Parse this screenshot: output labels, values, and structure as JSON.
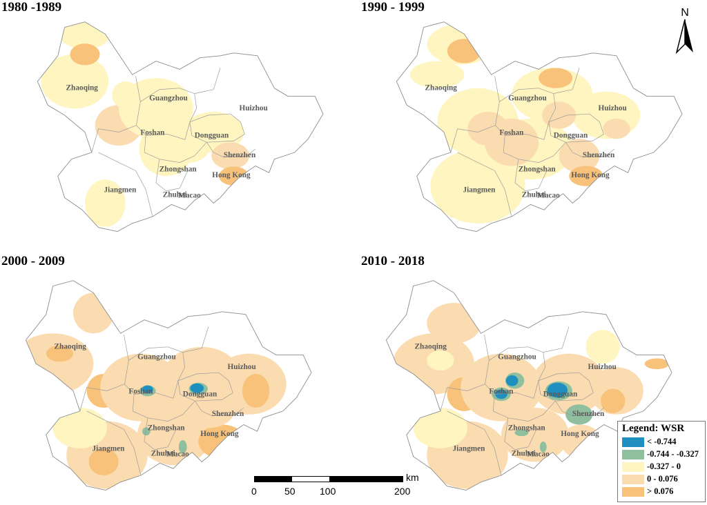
{
  "panels": [
    {
      "title": "1980 -1989"
    },
    {
      "title": "1990 - 1999"
    },
    {
      "title": "2000 - 2009"
    },
    {
      "title": "2010 - 2018"
    }
  ],
  "cities": {
    "zhaoqing": "Zhaoqing",
    "guangzhou": "Guangzhou",
    "huizhou": "Huizhou",
    "foshan": "Foshan",
    "dongguan": "Dongguan",
    "shenzhen": "Shenzhen",
    "zhongshan": "Zhongshan",
    "hongkong": "Hong Kong",
    "jiangmen": "Jiangmen",
    "zhuhai": "Zhuhai",
    "macao": "Macao"
  },
  "legend": {
    "title": "Legend: WSR",
    "items": [
      {
        "label": "< -0.744",
        "color": "#1f8fbf"
      },
      {
        "label": "-0.744 - -0.327",
        "color": "#8fbf9f"
      },
      {
        "label": "-0.327 - 0",
        "color": "#fff5c0"
      },
      {
        "label": "0 - 0.076",
        "color": "#fbdcb0"
      },
      {
        "label": "> 0.076",
        "color": "#f8c27a"
      }
    ]
  },
  "scalebar": {
    "unit": "km",
    "labels": [
      "0",
      "50",
      "100",
      "200"
    ]
  },
  "north_arrow": {
    "label": "N",
    "icon": "north-arrow-icon"
  },
  "colors": {
    "outline": "#8a8a8a",
    "city_label": "#5a5a5a"
  }
}
